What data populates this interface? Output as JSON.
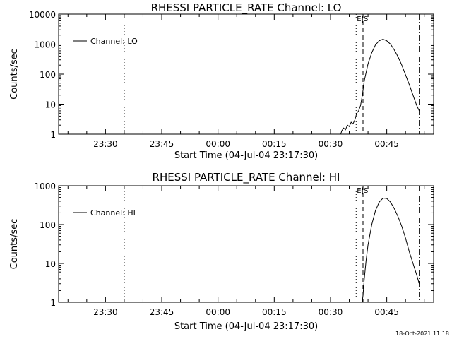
{
  "timestamp": "18-Oct-2021 11:18",
  "chart_data": [
    {
      "type": "line",
      "title": "RHESSI PARTICLE_RATE Channel: LO",
      "xlabel": "Start Time (04-Jul-04 23:17:30)",
      "ylabel": "Counts/sec",
      "yscale": "log",
      "ylim": [
        1,
        10000
      ],
      "yticks": [
        "1",
        "10",
        "100",
        "1000",
        "10000"
      ],
      "xlim": [
        "23:17:30",
        "00:57:30"
      ],
      "xticks": [
        "23:30",
        "23:45",
        "00:00",
        "00:15",
        "00:30",
        "00:45"
      ],
      "legend": {
        "position": "top-left",
        "label": "Channel: LO"
      },
      "event_label": "E|S",
      "markers": [
        {
          "time": "23:35:00",
          "style": "dotted"
        },
        {
          "time": "00:36:50",
          "style": "dotted"
        },
        {
          "time": "00:38:40",
          "style": "dashed"
        },
        {
          "time": "00:53:40",
          "style": "dashdot"
        }
      ],
      "series": [
        {
          "name": "Channel: LO",
          "x": [
            "00:32:30",
            "00:33:00",
            "00:33:30",
            "00:34:00",
            "00:34:30",
            "00:35:00",
            "00:35:30",
            "00:36:00",
            "00:36:30",
            "00:37:00",
            "00:37:30",
            "00:38:00",
            "00:38:30",
            "00:39:00",
            "00:40:00",
            "00:41:00",
            "00:42:00",
            "00:43:00",
            "00:44:00",
            "00:45:00",
            "00:46:00",
            "00:47:00",
            "00:48:00",
            "00:49:00",
            "00:50:00",
            "00:51:00",
            "00:52:00",
            "00:53:00",
            "00:53:40"
          ],
          "y": [
            0.8,
            1.3,
            1.6,
            1.4,
            2,
            1.8,
            2.5,
            2.2,
            3,
            5,
            6,
            9,
            20,
            60,
            220,
            520,
            950,
            1300,
            1450,
            1300,
            1000,
            650,
            380,
            200,
            95,
            45,
            20,
            9,
            6
          ]
        }
      ]
    },
    {
      "type": "line",
      "title": "RHESSI PARTICLE_RATE Channel: HI",
      "xlabel": "Start Time (04-Jul-04 23:17:30)",
      "ylabel": "Counts/sec",
      "yscale": "log",
      "ylim": [
        1,
        1000
      ],
      "yticks": [
        "1",
        "10",
        "100",
        "1000"
      ],
      "xlim": [
        "23:17:30",
        "00:57:30"
      ],
      "xticks": [
        "23:30",
        "23:45",
        "00:00",
        "00:15",
        "00:30",
        "00:45"
      ],
      "legend": {
        "position": "top-left",
        "label": "Channel: HI"
      },
      "event_label": "E|S",
      "markers": [
        {
          "time": "23:35:00",
          "style": "dotted"
        },
        {
          "time": "00:36:50",
          "style": "dotted"
        },
        {
          "time": "00:38:40",
          "style": "dashed"
        },
        {
          "time": "00:53:40",
          "style": "dashdot"
        }
      ],
      "series": [
        {
          "name": "Channel: HI",
          "x": [
            "00:38:20",
            "00:38:40",
            "00:39:00",
            "00:39:30",
            "00:40:00",
            "00:41:00",
            "00:42:00",
            "00:43:00",
            "00:44:00",
            "00:45:00",
            "00:46:00",
            "00:47:00",
            "00:48:00",
            "00:49:00",
            "00:50:00",
            "00:51:00",
            "00:52:00",
            "00:53:00",
            "00:53:40"
          ],
          "y": [
            0.8,
            1.5,
            4,
            12,
            30,
            100,
            230,
            380,
            480,
            470,
            380,
            260,
            160,
            90,
            45,
            20,
            10,
            5,
            3
          ]
        }
      ]
    }
  ]
}
